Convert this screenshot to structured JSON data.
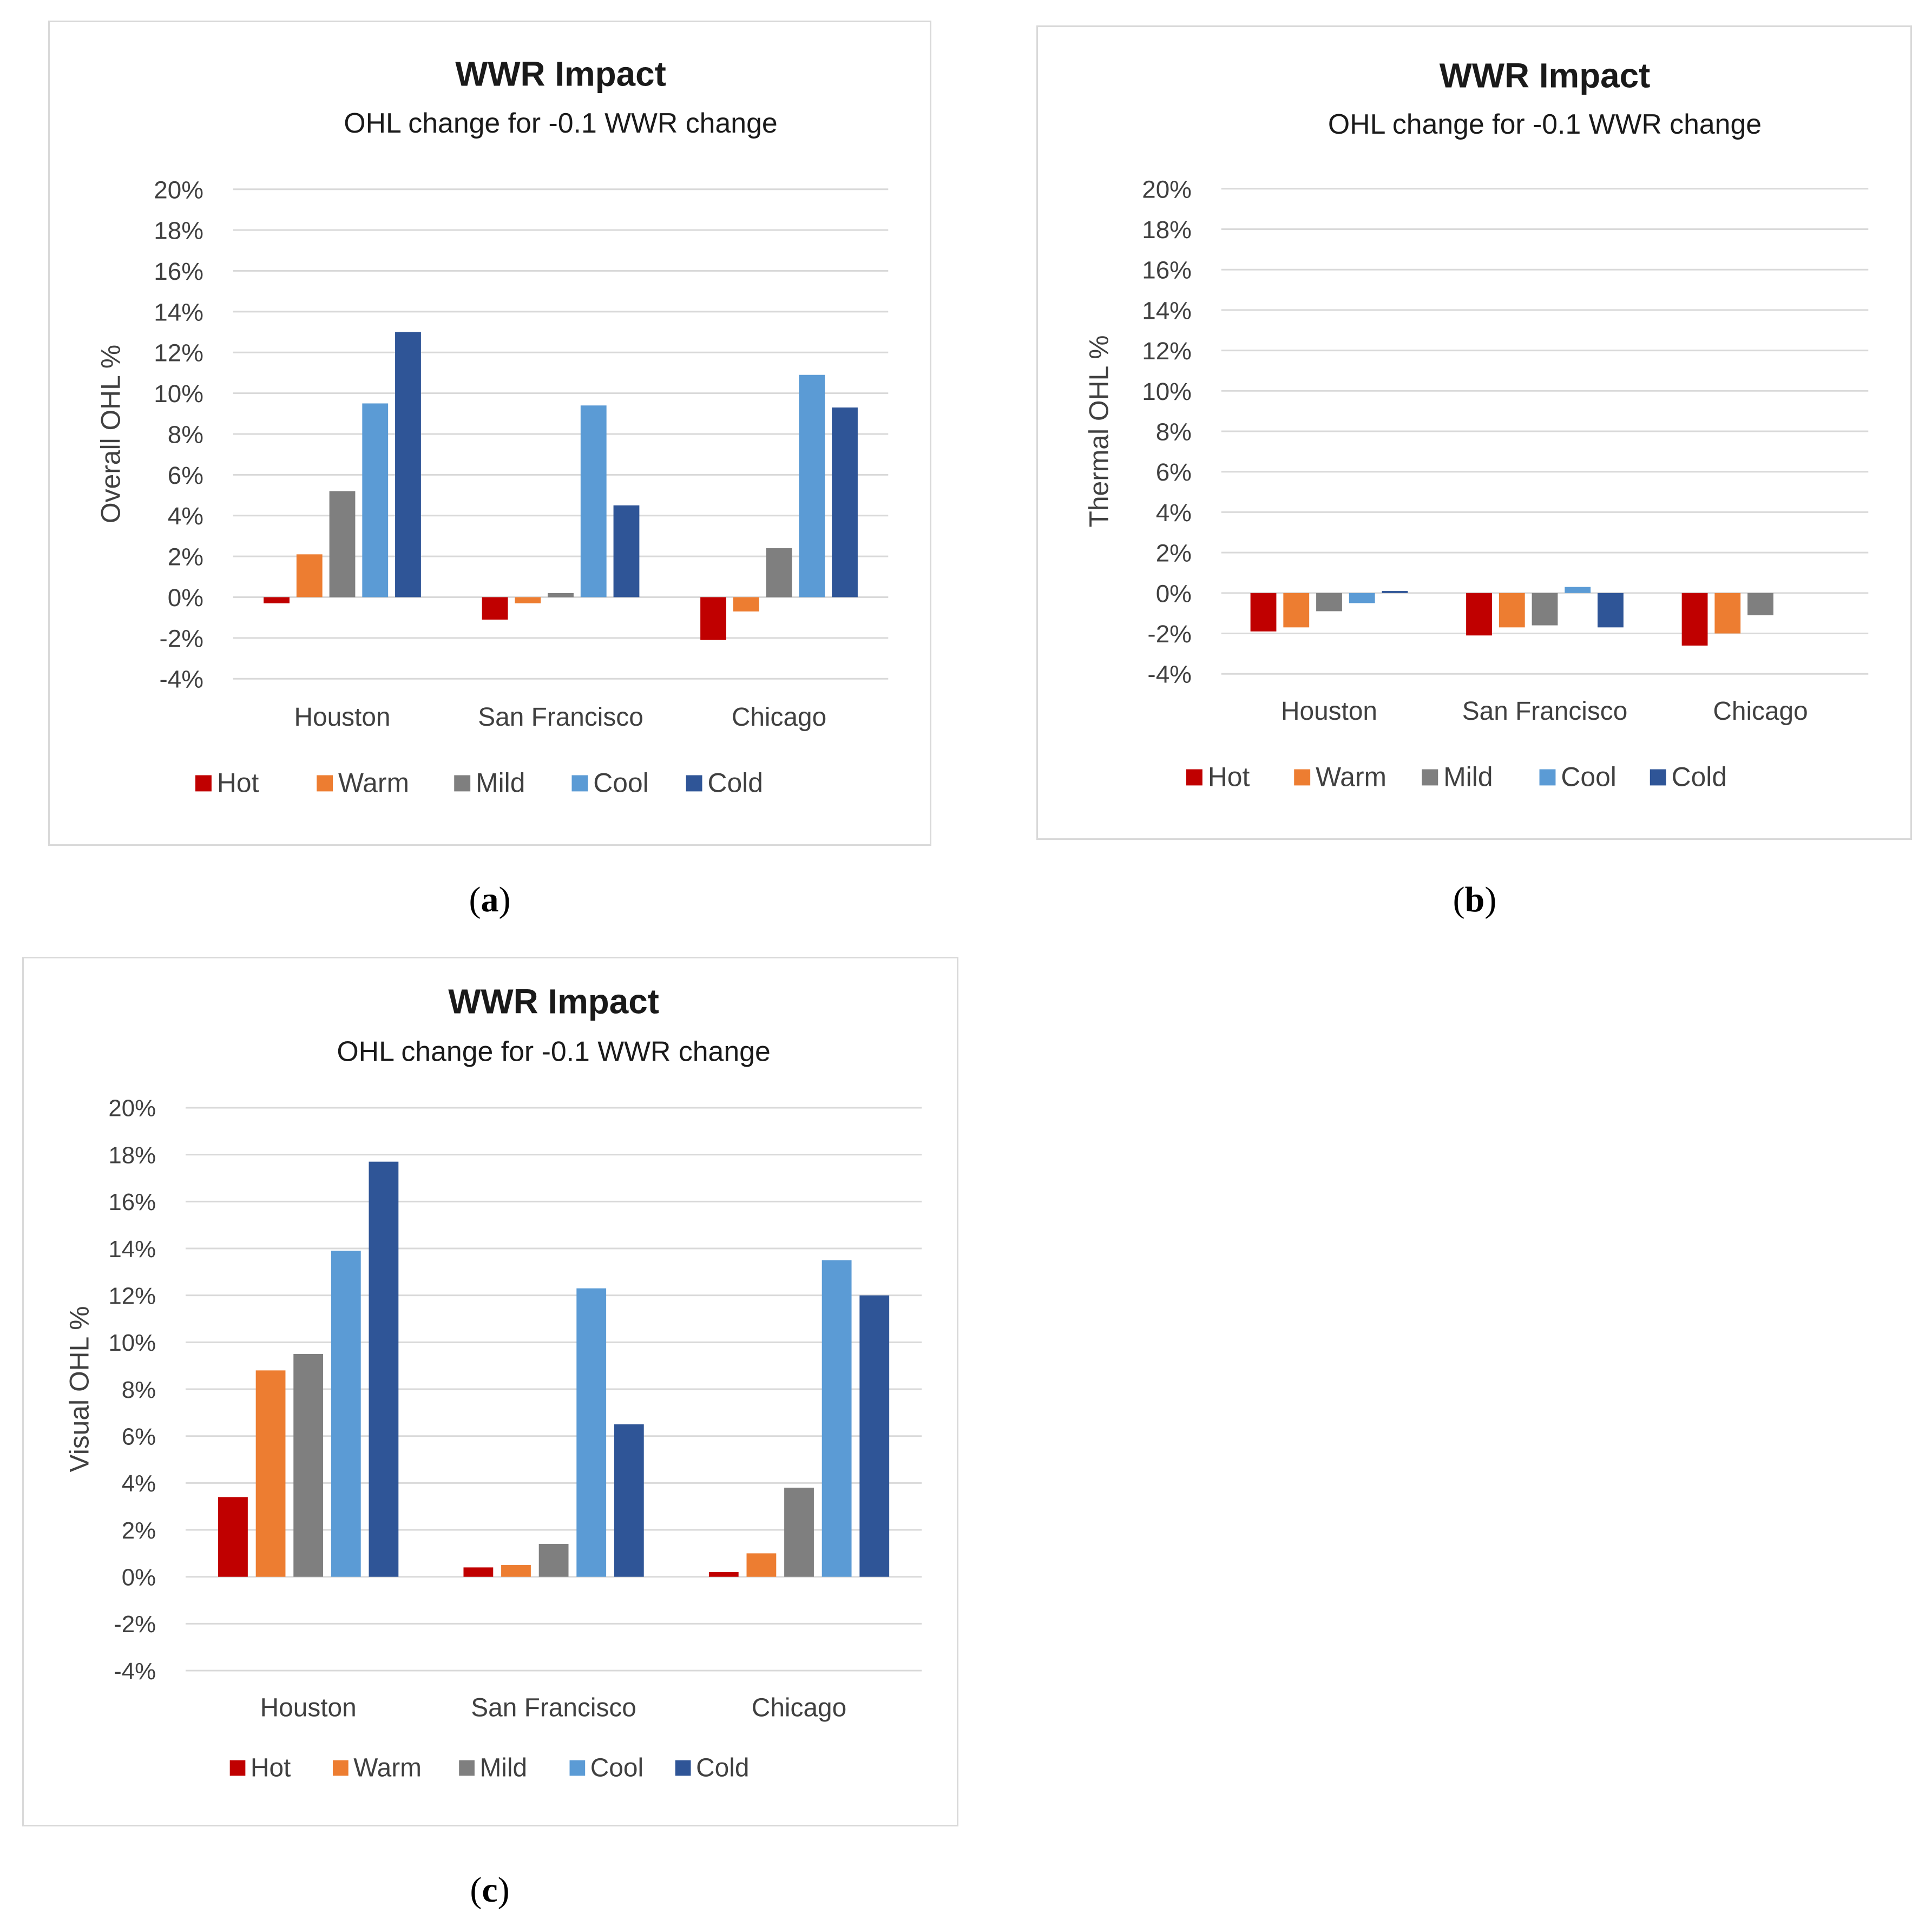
{
  "colors": {
    "Hot": "#c00000",
    "Warm": "#ed7d31",
    "Mild": "#7f7f7f",
    "Cool": "#5b9bd5",
    "Cold": "#2f5597"
  },
  "chart_data": [
    {
      "type": "bar",
      "panel": "a",
      "title": "WWR Impact",
      "subtitle": "OHL change for -0.1 WWR change",
      "xlabel": "",
      "ylabel": "Overall OHL %",
      "ylim": [
        -0.04,
        0.2
      ],
      "yticks": [
        "20%",
        "18%",
        "16%",
        "14%",
        "12%",
        "10%",
        "8%",
        "6%",
        "4%",
        "2%",
        "0%",
        "-2%",
        "-4%"
      ],
      "categories": [
        "Houston",
        "San Francisco",
        "Chicago"
      ],
      "legend": "bottom",
      "series": [
        {
          "name": "Hot",
          "values": [
            -0.003,
            -0.011,
            -0.021
          ]
        },
        {
          "name": "Warm",
          "values": [
            0.021,
            -0.003,
            -0.007
          ]
        },
        {
          "name": "Mild",
          "values": [
            0.052,
            0.002,
            0.024
          ]
        },
        {
          "name": "Cool",
          "values": [
            0.095,
            0.094,
            0.109
          ]
        },
        {
          "name": "Cold",
          "values": [
            0.13,
            0.045,
            0.093
          ]
        }
      ],
      "sublabel": "a"
    },
    {
      "type": "bar",
      "panel": "b",
      "title": "WWR Impact",
      "subtitle": "OHL change for -0.1 WWR change",
      "xlabel": "",
      "ylabel": "Thermal OHL %",
      "ylim": [
        -0.04,
        0.2
      ],
      "yticks": [
        "20%",
        "18%",
        "16%",
        "14%",
        "12%",
        "10%",
        "8%",
        "6%",
        "4%",
        "2%",
        "0%",
        "-2%",
        "-4%"
      ],
      "categories": [
        "Houston",
        "San Francisco",
        "Chicago"
      ],
      "legend": "bottom",
      "series": [
        {
          "name": "Hot",
          "values": [
            -0.019,
            -0.021,
            -0.026
          ]
        },
        {
          "name": "Warm",
          "values": [
            -0.017,
            -0.017,
            -0.02
          ]
        },
        {
          "name": "Mild",
          "values": [
            -0.009,
            -0.016,
            -0.011
          ]
        },
        {
          "name": "Cool",
          "values": [
            -0.005,
            0.003,
            0.0
          ]
        },
        {
          "name": "Cold",
          "values": [
            0.001,
            -0.017,
            0.0
          ]
        }
      ],
      "sublabel": "b"
    },
    {
      "type": "bar",
      "panel": "c",
      "title": "WWR Impact",
      "subtitle": "OHL change for -0.1 WWR change",
      "xlabel": "",
      "ylabel": "Visual OHL %",
      "ylim": [
        -0.04,
        0.2
      ],
      "yticks": [
        "20%",
        "18%",
        "16%",
        "14%",
        "12%",
        "10%",
        "8%",
        "6%",
        "4%",
        "2%",
        "0%",
        "-2%",
        "-4%"
      ],
      "categories": [
        "Houston",
        "San Francisco",
        "Chicago"
      ],
      "legend": "bottom",
      "series": [
        {
          "name": "Hot",
          "values": [
            0.034,
            0.004,
            0.002
          ]
        },
        {
          "name": "Warm",
          "values": [
            0.088,
            0.005,
            0.01
          ]
        },
        {
          "name": "Mild",
          "values": [
            0.095,
            0.014,
            0.038
          ]
        },
        {
          "name": "Cool",
          "values": [
            0.139,
            0.123,
            0.135
          ]
        },
        {
          "name": "Cold",
          "values": [
            0.177,
            0.065,
            0.12
          ]
        }
      ],
      "sublabel": "c"
    }
  ]
}
